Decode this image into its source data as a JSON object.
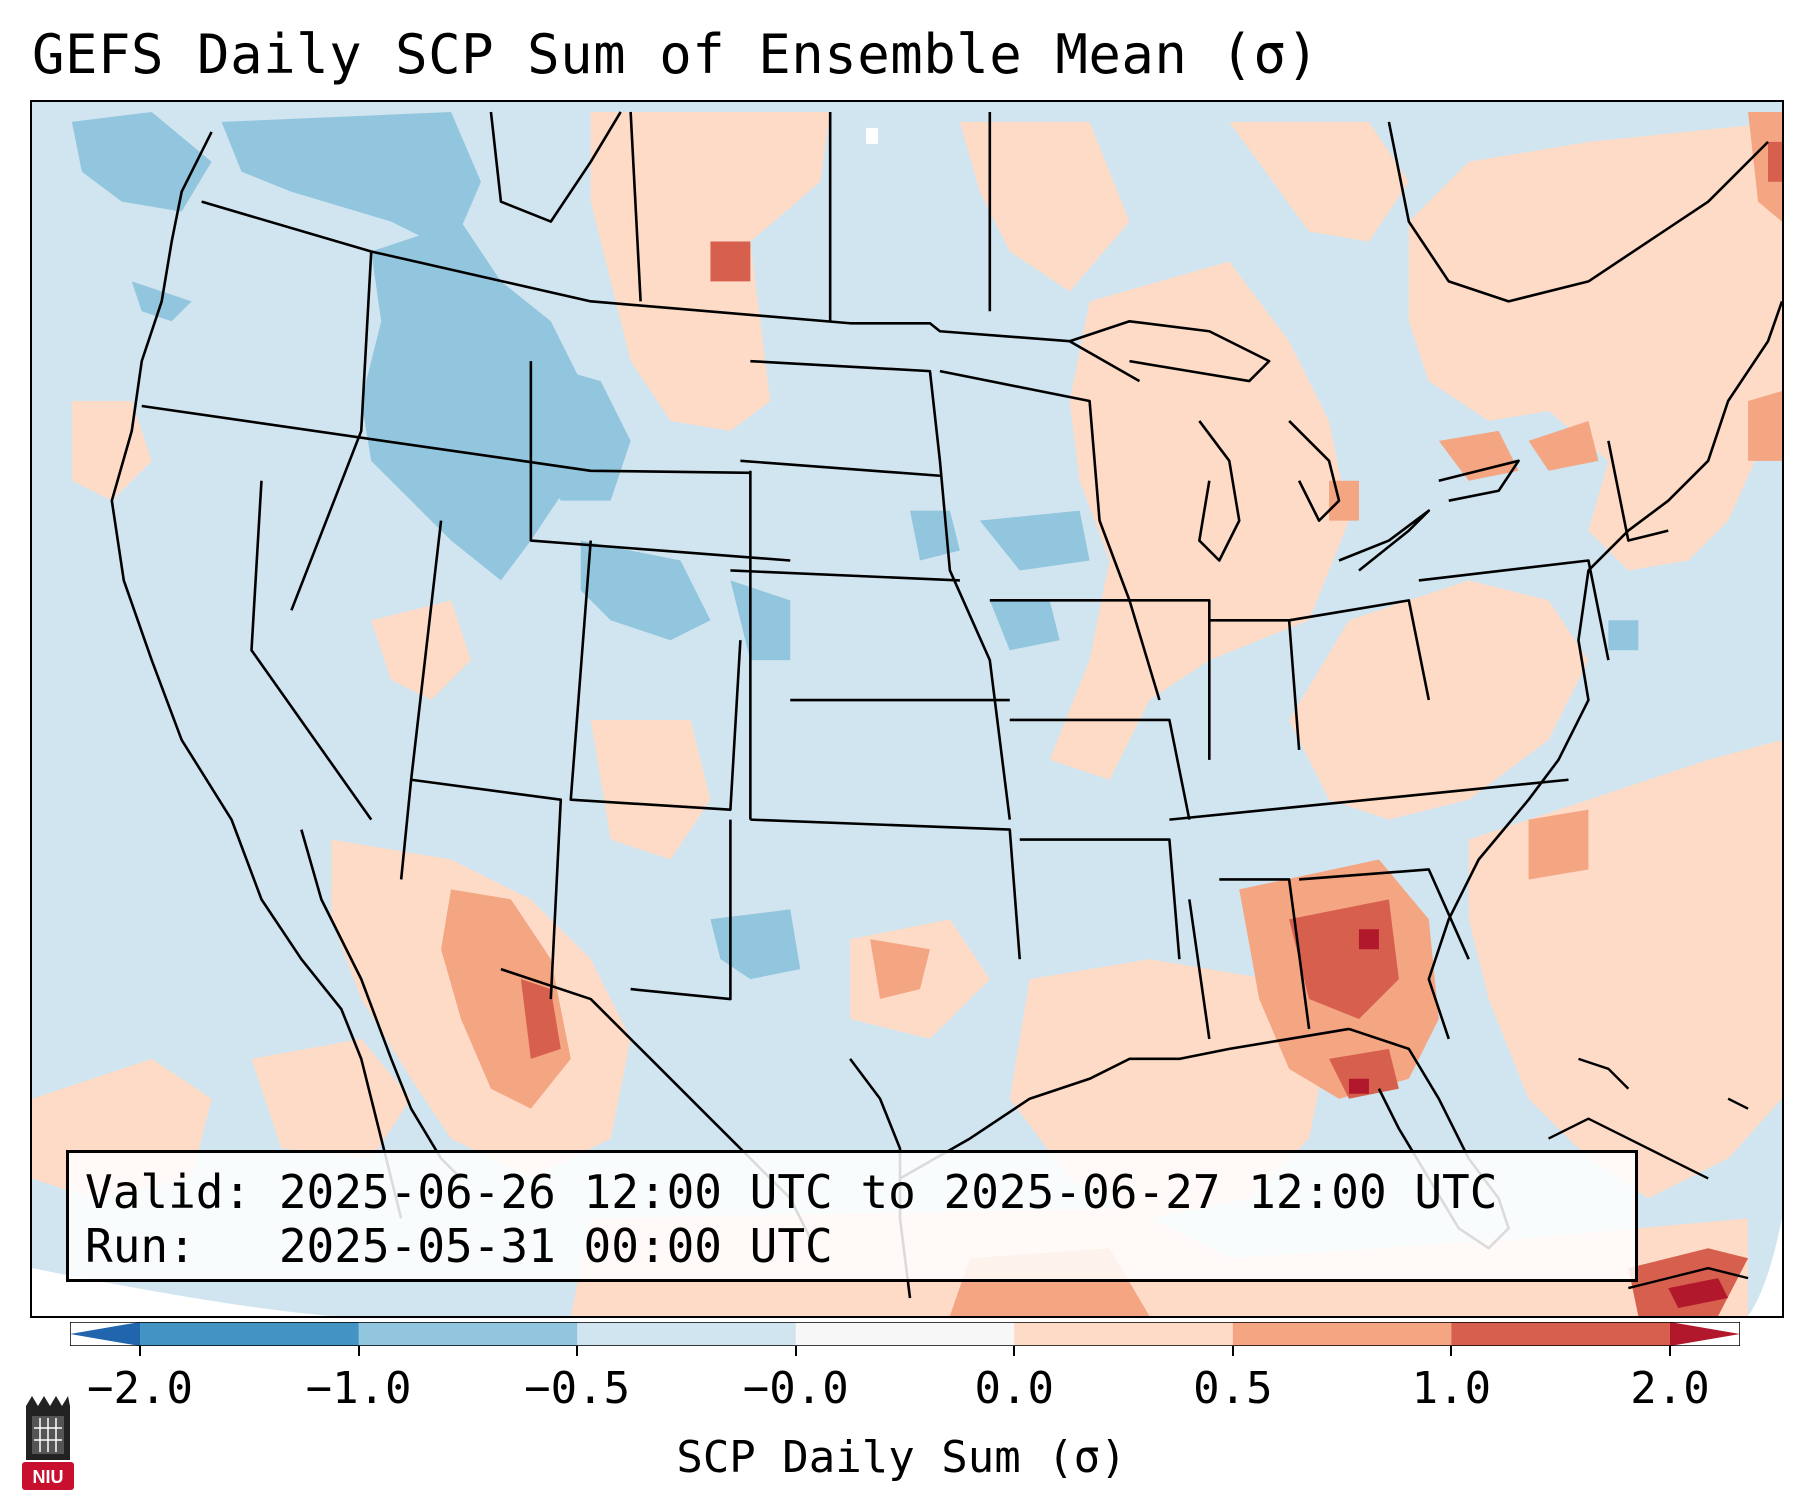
{
  "title": "GEFS Daily SCP Sum of Ensemble Mean (σ)",
  "info": {
    "valid_line": "Valid: 2025-06-26 12:00 UTC to 2025-06-27 12:00 UTC",
    "run_line": "Run:   2025-05-31 00:00 UTC"
  },
  "colorbar": {
    "title": "SCP Daily Sum (σ)",
    "tick_labels": [
      "−2.0",
      "−1.0",
      "−0.5",
      "−0.0",
      "0.0",
      "0.5",
      "1.0",
      "2.0"
    ],
    "colors": [
      "#2166ac",
      "#4393c3",
      "#92c5de",
      "#d1e5f0",
      "#f7f7f7",
      "#fddbc7",
      "#f4a582",
      "#d6604d",
      "#b2182b"
    ]
  },
  "logo": {
    "text": "NIU",
    "accent": "#c8102e"
  }
}
